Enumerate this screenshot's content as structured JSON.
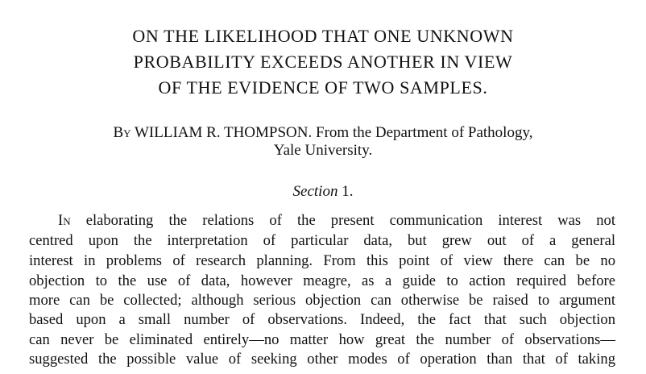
{
  "paper": {
    "title_lines": [
      "ON THE LIKELIHOOD THAT ONE UNKNOWN",
      "PROBABILITY EXCEEDS ANOTHER IN VIEW",
      "OF THE EVIDENCE OF TWO SAMPLES."
    ],
    "byline": {
      "by": "By",
      "author": "WILLIAM R. THOMPSON.",
      "affiliation_line1": "From the Department of Pathology,",
      "affiliation_line2": "Yale University."
    },
    "section": {
      "label": "Section",
      "number": "1."
    },
    "body": {
      "first_word_cap": "In",
      "first_line_rest": "elaborating the relations of the present communication interest was not",
      "lines": [
        "centred upon the interpretation of particular data, but grew out of a general",
        "interest in problems of research planning. From this point of view there can be no",
        "objection to the use of data, however meagre, as a guide to action required before",
        "more can be collected; although serious objection can otherwise be raised to argument",
        "based upon a small number of observations. Indeed, the fact that such objection",
        "can never be eliminated entirely—no matter how great the number of observations—",
        "suggested the possible value of seeking other modes of operation than that of taking"
      ]
    }
  }
}
